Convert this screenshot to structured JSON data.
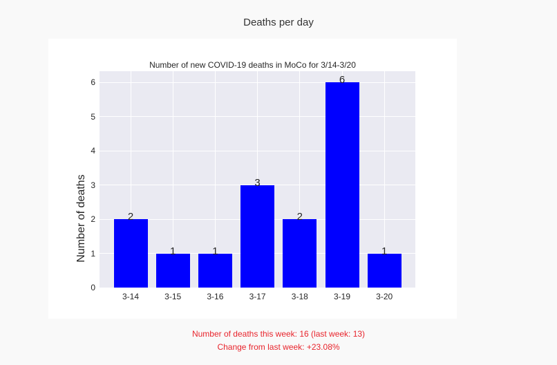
{
  "page": {
    "title": "Deaths per day",
    "summary_line1": "Number of deaths this week: 16 (last week: 13)",
    "summary_line2": "Change from last week: +23.08%",
    "summary_color": "#e8242c"
  },
  "chart_data": {
    "type": "bar",
    "title": "Number of new COVID-19 deaths in MoCo for 3/14-3/20",
    "xlabel": "",
    "ylabel": "Number of deaths",
    "categories": [
      "3-14",
      "3-15",
      "3-16",
      "3-17",
      "3-18",
      "3-19",
      "3-20"
    ],
    "values": [
      2,
      1,
      1,
      3,
      2,
      6,
      1
    ],
    "data_labels": [
      "2",
      "1",
      "1",
      "3",
      "2",
      "6",
      "1"
    ],
    "yticks": [
      "0",
      "1",
      "2",
      "3",
      "4",
      "5",
      "6"
    ],
    "ylim": [
      0,
      6.3
    ],
    "grid": true,
    "bar_color": "#0000ff",
    "background": "#eaeaf2"
  }
}
